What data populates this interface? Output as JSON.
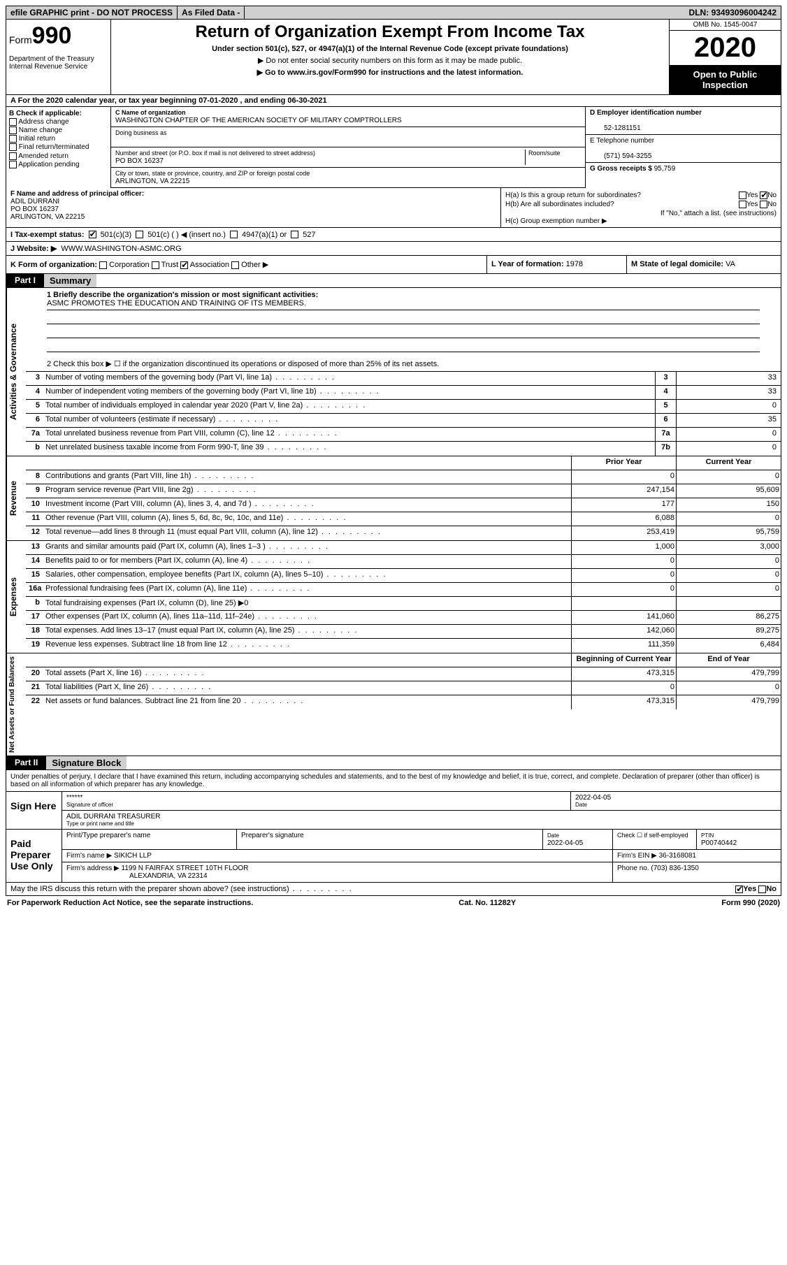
{
  "topbar": {
    "efile": "efile GRAPHIC print - DO NOT PROCESS",
    "asfiled": "As Filed Data -",
    "dln_label": "DLN:",
    "dln": "93493096004242"
  },
  "header": {
    "form_prefix": "Form",
    "form_num": "990",
    "dept1": "Department of the Treasury",
    "dept2": "Internal Revenue Service",
    "title": "Return of Organization Exempt From Income Tax",
    "sub": "Under section 501(c), 527, or 4947(a)(1) of the Internal Revenue Code (except private foundations)",
    "note1": "▶ Do not enter social security numbers on this form as it may be made public.",
    "note2": "▶ Go to www.irs.gov/Form990 for instructions and the latest information.",
    "omb": "OMB No. 1545-0047",
    "year": "2020",
    "open": "Open to Public Inspection"
  },
  "rowA": "A  For the 2020 calendar year, or tax year beginning 07-01-2020   , and ending 06-30-2021",
  "B": {
    "label": "B Check if applicable:",
    "opts": [
      "Address change",
      "Name change",
      "Initial return",
      "Final return/terminated",
      "Amended return",
      "Application pending"
    ]
  },
  "C": {
    "name_lbl": "C Name of organization",
    "name": "WASHINGTON CHAPTER OF THE AMERICAN SOCIETY OF MILITARY COMPTROLLERS",
    "dba_lbl": "Doing business as",
    "dba": "",
    "street_lbl": "Number and street (or P.O. box if mail is not delivered to street address)",
    "room_lbl": "Room/suite",
    "street": "PO BOX 16237",
    "city_lbl": "City or town, state or province, country, and ZIP or foreign postal code",
    "city": "ARLINGTON, VA  22215"
  },
  "D": {
    "lbl": "D Employer identification number",
    "val": "52-1281151"
  },
  "E": {
    "lbl": "E Telephone number",
    "val": "(571) 594-3255"
  },
  "G": {
    "lbl": "G Gross receipts $",
    "val": "95,759"
  },
  "F": {
    "lbl": "F  Name and address of principal officer:",
    "name": "ADIL DURRANI",
    "street": "PO BOX 16237",
    "city": "ARLINGTON, VA  22215"
  },
  "H": {
    "a": "H(a)  Is this a group return for subordinates?",
    "b": "H(b)  Are all subordinates included?",
    "b_note": "If \"No,\" attach a list. (see instructions)",
    "c": "H(c)  Group exemption number ▶",
    "yes": "Yes",
    "no": "No"
  },
  "I": {
    "lbl": "I  Tax-exempt status:",
    "o1": "501(c)(3)",
    "o2": "501(c) (  ) ◀ (insert no.)",
    "o3": "4947(a)(1) or",
    "o4": "527"
  },
  "J": {
    "lbl": "J  Website: ▶",
    "val": "WWW.WASHINGTON-ASMC.ORG"
  },
  "K": {
    "lbl": "K Form of organization:",
    "o1": "Corporation",
    "o2": "Trust",
    "o3": "Association",
    "o4": "Other ▶"
  },
  "L": {
    "lbl": "L Year of formation:",
    "val": "1978"
  },
  "M": {
    "lbl": "M State of legal domicile:",
    "val": "VA"
  },
  "part1": {
    "tag": "Part I",
    "title": "Summary"
  },
  "mission": {
    "lbl": "1 Briefly describe the organization's mission or most significant activities:",
    "txt": "ASMC PROMOTES THE EDUCATION AND TRAINING OF ITS MEMBERS."
  },
  "line2": "2  Check this box ▶ ☐ if the organization discontinued its operations or disposed of more than 25% of its net assets.",
  "gov_lines": [
    {
      "n": "3",
      "t": "Number of voting members of the governing body (Part VI, line 1a)",
      "box": "3",
      "v": "33"
    },
    {
      "n": "4",
      "t": "Number of independent voting members of the governing body (Part VI, line 1b)",
      "box": "4",
      "v": "33"
    },
    {
      "n": "5",
      "t": "Total number of individuals employed in calendar year 2020 (Part V, line 2a)",
      "box": "5",
      "v": "0"
    },
    {
      "n": "6",
      "t": "Total number of volunteers (estimate if necessary)",
      "box": "6",
      "v": "35"
    },
    {
      "n": "7a",
      "t": "Total unrelated business revenue from Part VIII, column (C), line 12",
      "box": "7a",
      "v": "0"
    },
    {
      "n": "b",
      "t": "Net unrelated business taxable income from Form 990-T, line 39",
      "box": "7b",
      "v": "0"
    }
  ],
  "col_hdr": {
    "prior": "Prior Year",
    "current": "Current Year"
  },
  "rev_lines": [
    {
      "n": "8",
      "t": "Contributions and grants (Part VIII, line 1h)",
      "p": "0",
      "c": "0"
    },
    {
      "n": "9",
      "t": "Program service revenue (Part VIII, line 2g)",
      "p": "247,154",
      "c": "95,609"
    },
    {
      "n": "10",
      "t": "Investment income (Part VIII, column (A), lines 3, 4, and 7d )",
      "p": "177",
      "c": "150"
    },
    {
      "n": "11",
      "t": "Other revenue (Part VIII, column (A), lines 5, 6d, 8c, 9c, 10c, and 11e)",
      "p": "6,088",
      "c": "0"
    },
    {
      "n": "12",
      "t": "Total revenue—add lines 8 through 11 (must equal Part VIII, column (A), line 12)",
      "p": "253,419",
      "c": "95,759"
    }
  ],
  "exp_lines": [
    {
      "n": "13",
      "t": "Grants and similar amounts paid (Part IX, column (A), lines 1–3 )",
      "p": "1,000",
      "c": "3,000"
    },
    {
      "n": "14",
      "t": "Benefits paid to or for members (Part IX, column (A), line 4)",
      "p": "0",
      "c": "0"
    },
    {
      "n": "15",
      "t": "Salaries, other compensation, employee benefits (Part IX, column (A), lines 5–10)",
      "p": "0",
      "c": "0"
    },
    {
      "n": "16a",
      "t": "Professional fundraising fees (Part IX, column (A), line 11e)",
      "p": "0",
      "c": "0"
    },
    {
      "n": "b",
      "t": "Total fundraising expenses (Part IX, column (D), line 25) ▶0",
      "p": "",
      "c": "",
      "shade": true
    },
    {
      "n": "17",
      "t": "Other expenses (Part IX, column (A), lines 11a–11d, 11f–24e)",
      "p": "141,060",
      "c": "86,275"
    },
    {
      "n": "18",
      "t": "Total expenses. Add lines 13–17 (must equal Part IX, column (A), line 25)",
      "p": "142,060",
      "c": "89,275"
    },
    {
      "n": "19",
      "t": "Revenue less expenses. Subtract line 18 from line 12",
      "p": "111,359",
      "c": "6,484"
    }
  ],
  "bal_hdr": {
    "beg": "Beginning of Current Year",
    "end": "End of Year"
  },
  "bal_lines": [
    {
      "n": "20",
      "t": "Total assets (Part X, line 16)",
      "p": "473,315",
      "c": "479,799"
    },
    {
      "n": "21",
      "t": "Total liabilities (Part X, line 26)",
      "p": "0",
      "c": "0"
    },
    {
      "n": "22",
      "t": "Net assets or fund balances. Subtract line 21 from line 20",
      "p": "473,315",
      "c": "479,799"
    }
  ],
  "vtabs": {
    "gov": "Activities & Governance",
    "rev": "Revenue",
    "exp": "Expenses",
    "bal": "Net Assets or Fund Balances"
  },
  "part2": {
    "tag": "Part II",
    "title": "Signature Block"
  },
  "sig": {
    "decl": "Under penalties of perjury, I declare that I have examined this return, including accompanying schedules and statements, and to the best of my knowledge and belief, it is true, correct, and complete. Declaration of preparer (other than officer) is based on all information of which preparer has any knowledge.",
    "sign_here": "Sign Here",
    "stars": "******",
    "sig_of_officer": "Signature of officer",
    "date_lbl": "Date",
    "date1": "2022-04-05",
    "name_title": "ADIL DURRANI TREASURER",
    "type_name": "Type or print name and title",
    "paid": "Paid Preparer Use Only",
    "prep_name_lbl": "Print/Type preparer's name",
    "prep_sig_lbl": "Preparer's signature",
    "date2": "2022-04-05",
    "check_self": "Check ☐ if self-employed",
    "ptin_lbl": "PTIN",
    "ptin": "P00740442",
    "firm_name_lbl": "Firm's name  ▶",
    "firm_name": "SIKICH LLP",
    "firm_ein_lbl": "Firm's EIN ▶",
    "firm_ein": "36-3168081",
    "firm_addr_lbl": "Firm's address ▶",
    "firm_addr1": "1199 N FAIRFAX STREET 10TH FLOOR",
    "firm_addr2": "ALEXANDRIA, VA 22314",
    "phone_lbl": "Phone no.",
    "phone": "(703) 836-1350",
    "discuss": "May the IRS discuss this return with the preparer shown above? (see instructions)"
  },
  "footer": {
    "left": "For Paperwork Reduction Act Notice, see the separate instructions.",
    "mid": "Cat. No. 11282Y",
    "right": "Form 990 (2020)"
  }
}
